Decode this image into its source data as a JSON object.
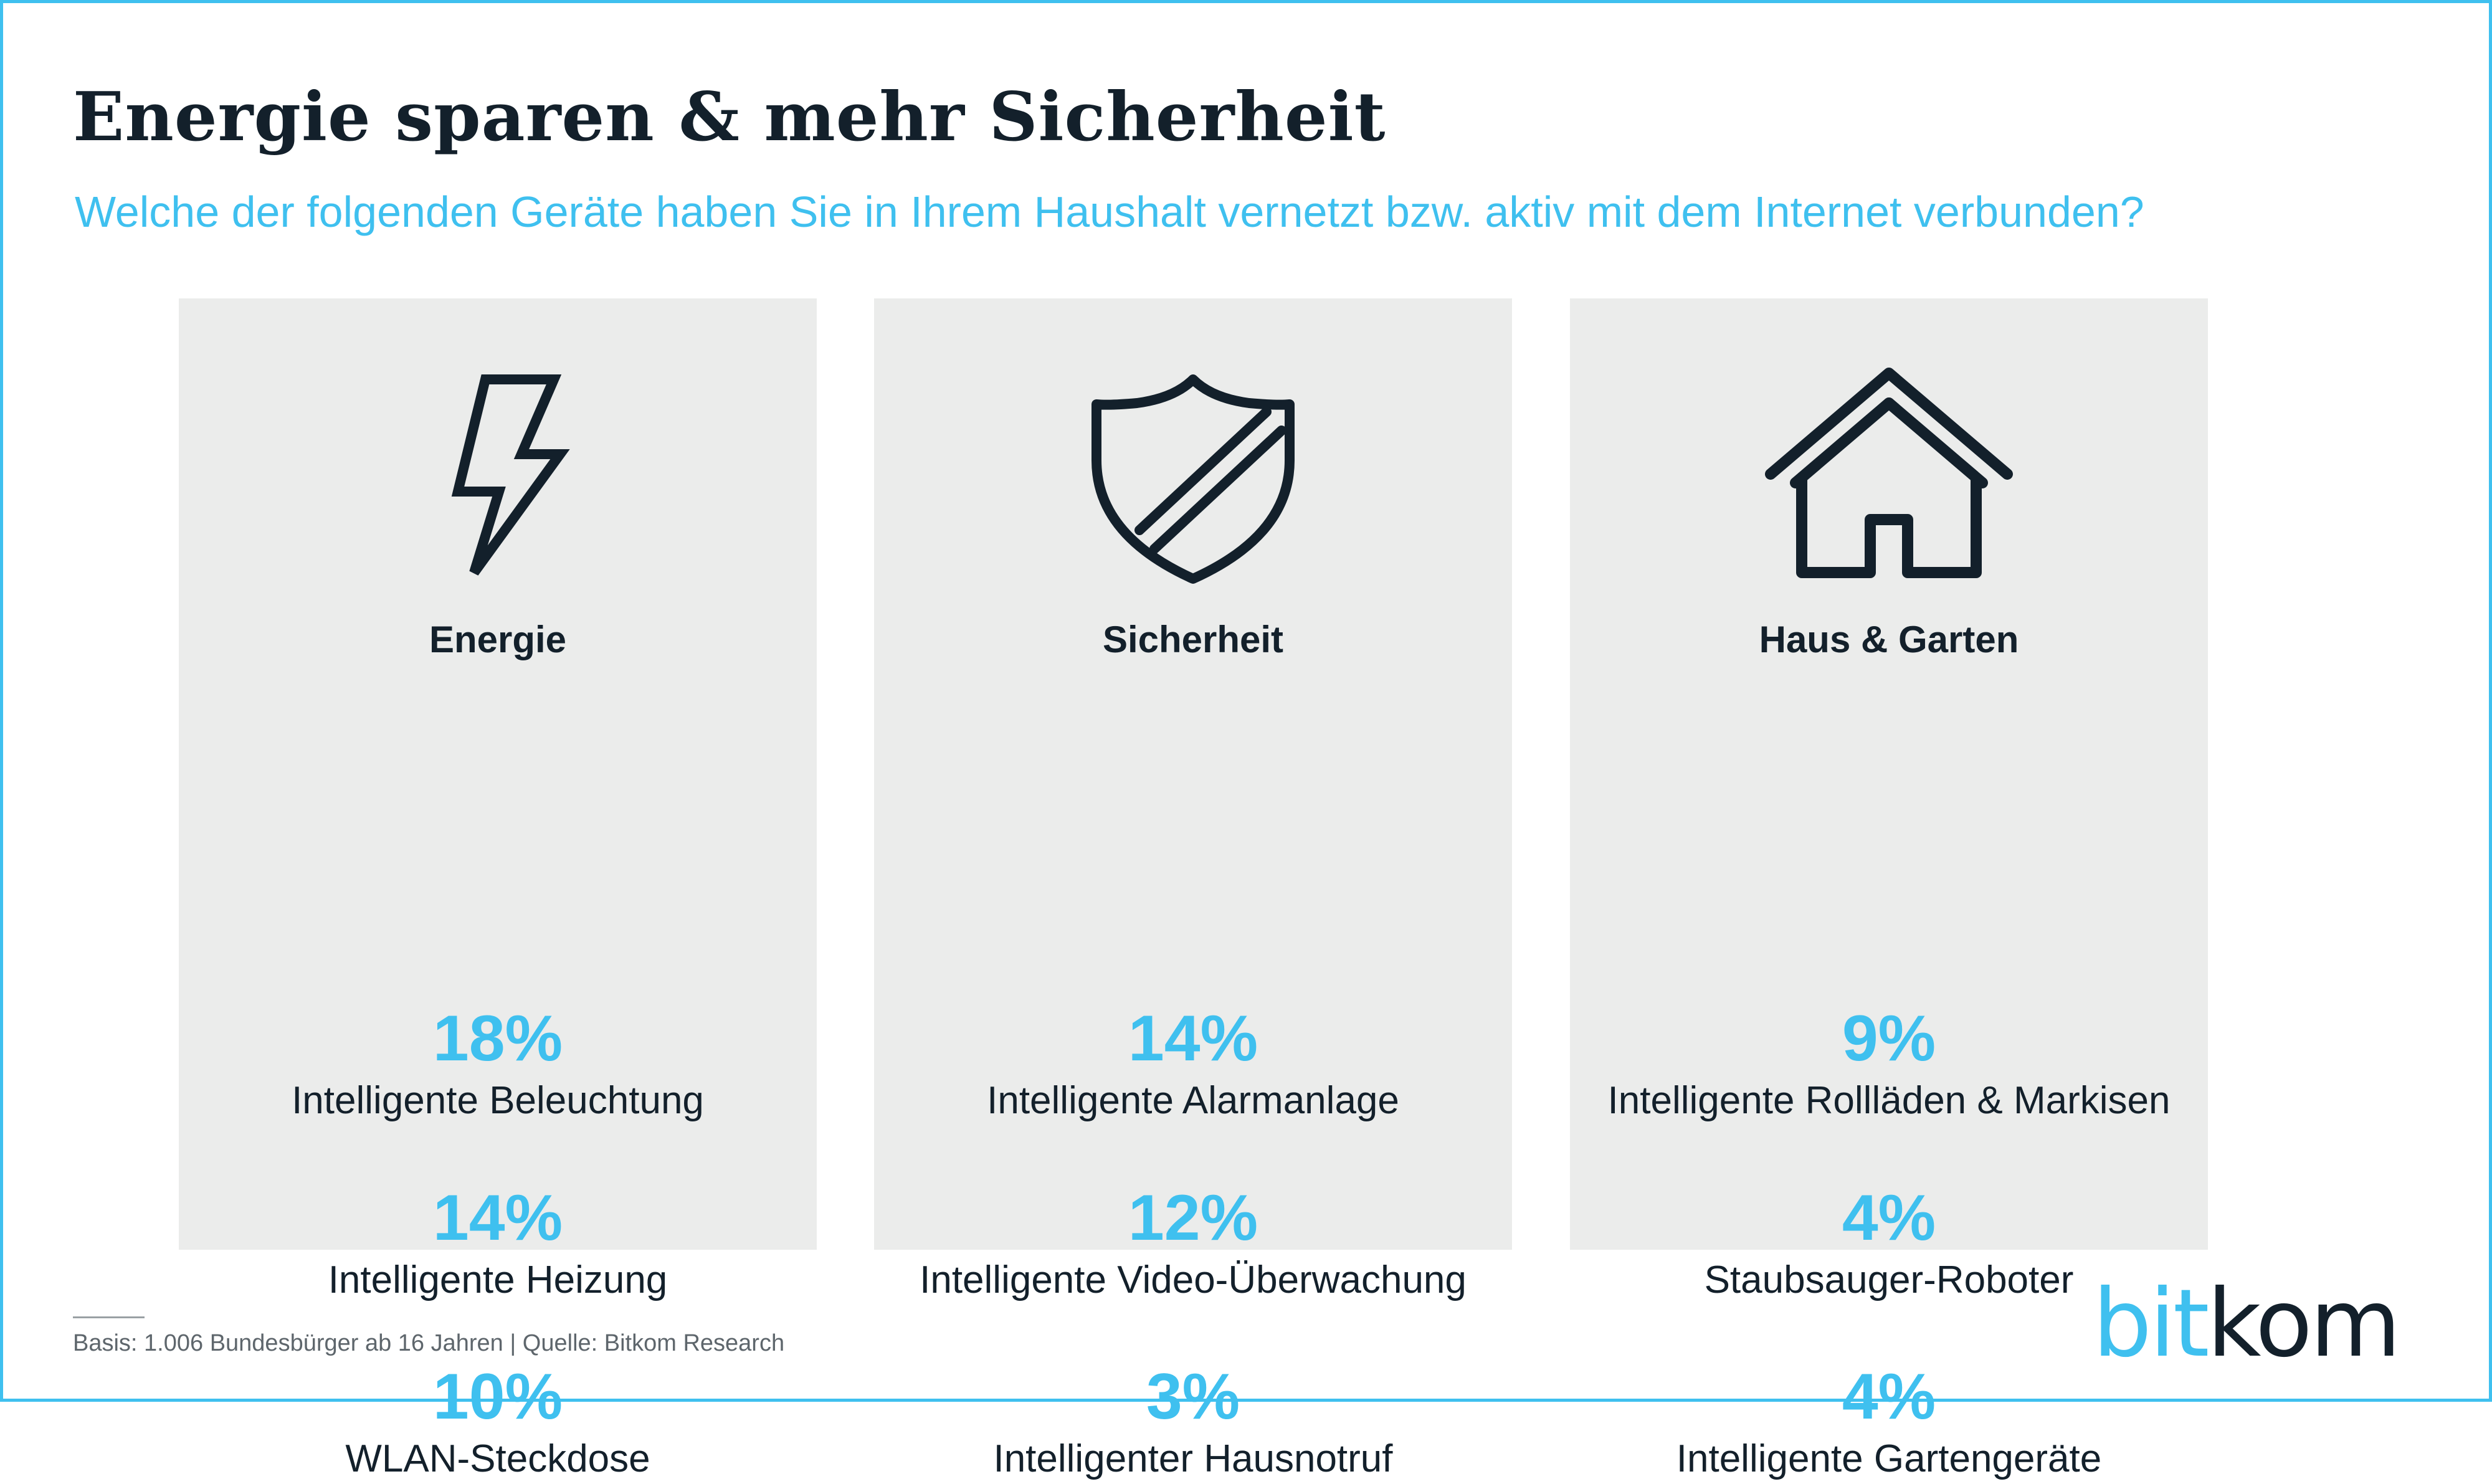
{
  "title": "Energie sparen & mehr Sicherheit",
  "subtitle": "Welche der folgenden Geräte haben Sie in Ihrem Haushalt vernetzt bzw. aktiv mit dem Internet verbunden?",
  "panels": [
    {
      "icon": "lightning-bolt-icon",
      "heading": "Energie",
      "items": [
        {
          "percent": "18%",
          "label": "Intelligente Beleuchtung"
        },
        {
          "percent": "14%",
          "label": "Intelligente Heizung"
        },
        {
          "percent": "10%",
          "label": "WLAN-Steckdose"
        }
      ]
    },
    {
      "icon": "shield-icon",
      "heading": "Sicherheit",
      "items": [
        {
          "percent": "14%",
          "label": "Intelligente Alarmanlage"
        },
        {
          "percent": "12%",
          "label": "Intelligente Video-Überwachung"
        },
        {
          "percent": "3%",
          "label": "Intelligenter Hausnotruf"
        }
      ]
    },
    {
      "icon": "house-icon",
      "heading": "Haus & Garten",
      "items": [
        {
          "percent": "9%",
          "label": "Intelligente Rollläden & Markisen"
        },
        {
          "percent": "4%",
          "label": "Staubsauger-Roboter"
        },
        {
          "percent": "4%",
          "label": "Intelligente Gartengeräte"
        }
      ]
    }
  ],
  "footer": {
    "source": "Basis: 1.006 Bundesbürger ab 16 Jahren | Quelle: Bitkom Research"
  },
  "brand": {
    "part1": "bit",
    "part2": "kom"
  },
  "colors": {
    "accent": "#3fc0ef",
    "text": "#13202b",
    "panel": "#ebeceb"
  }
}
